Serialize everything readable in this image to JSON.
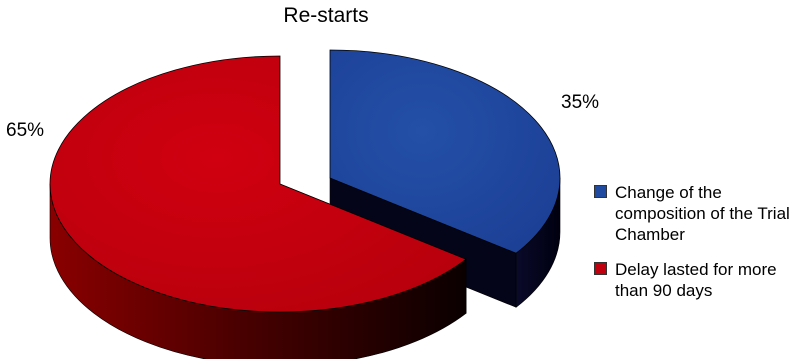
{
  "chart_data": {
    "type": "pie",
    "title": "Re-starts",
    "three_d": true,
    "exploded": true,
    "legend_position": "right",
    "slices": [
      {
        "label": "Change of the composition of the Trial Chamber",
        "value": 35,
        "display": "35%",
        "color": "#1f4aa0"
      },
      {
        "label": "Delay lasted for more than 90 days",
        "value": 65,
        "display": "65%",
        "color": "#c0000f"
      }
    ]
  }
}
